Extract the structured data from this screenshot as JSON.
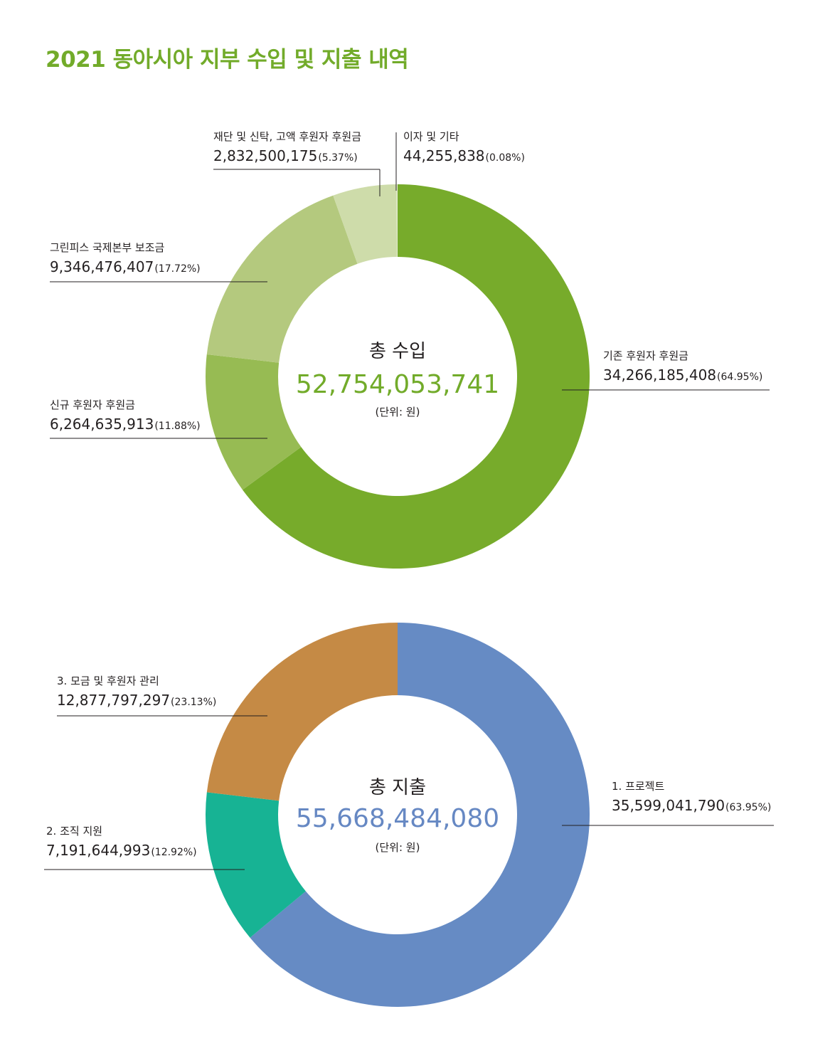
{
  "title": "2021 동아시아 지부 수입 및 지출 내역",
  "chart_data": [
    {
      "type": "pie",
      "id": "income",
      "center": {
        "title": "총 수입",
        "total": "52,754,053,741",
        "unit": "(단위: 원)"
      },
      "colors": {
        "total": "#72ab2a"
      },
      "slices": [
        {
          "label": "기존 후원자 후원금",
          "value": 34266185408,
          "amount": "34,266,185,408",
          "percent": "(64.95%)",
          "color": "#77ab2b"
        },
        {
          "label": "신규 후원자 후원금",
          "value": 6264635913,
          "amount": "6,264,635,913",
          "percent": "(11.88%)",
          "color": "#97bb53"
        },
        {
          "label": "그린피스 국제본부 보조금",
          "value": 9346476407,
          "amount": "9,346,476,407",
          "percent": "(17.72%)",
          "color": "#b4c97e"
        },
        {
          "label": "재단 및 신탁, 고액 후원자 후원금",
          "value": 2832500175,
          "amount": "2,832,500,175",
          "percent": "(5.37%)",
          "color": "#cedcaa"
        },
        {
          "label": "이자 및 기타",
          "value": 44255838,
          "amount": "44,255,838",
          "percent": "(0.08%)",
          "color": "#e4ecd0"
        }
      ]
    },
    {
      "type": "pie",
      "id": "expense",
      "center": {
        "title": "총 지출",
        "total": "55,668,484,080",
        "unit": "(단위: 원)"
      },
      "colors": {
        "total": "#6688c3"
      },
      "slices": [
        {
          "label": "1. 프로젝트",
          "value": 35599041790,
          "amount": "35,599,041,790",
          "percent": "(63.95%)",
          "color": "#668bc4"
        },
        {
          "label": "2. 조직 지원",
          "value": 7191644993,
          "amount": "7,191,644,993",
          "percent": "(12.92%)",
          "color": "#17b394"
        },
        {
          "label": "3. 모금 및 후원자 관리",
          "value": 12877797297,
          "amount": "12,877,797,297",
          "percent": "(23.13%)",
          "color": "#c58a45"
        }
      ]
    }
  ]
}
